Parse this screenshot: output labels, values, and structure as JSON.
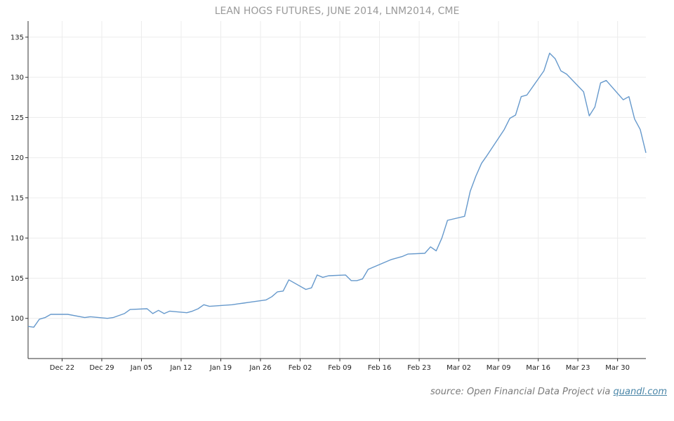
{
  "chart_data": {
    "type": "line",
    "title": "LEAN HOGS FUTURES, JUNE 2014, LNM2014, CME",
    "xlabel": "",
    "ylabel": "",
    "ylim": [
      95,
      137
    ],
    "xlim": [
      "2013-12-16",
      "2014-04-04"
    ],
    "grid": true,
    "line_color": "#6699cc",
    "yticks": [
      100,
      105,
      110,
      115,
      120,
      125,
      130,
      135
    ],
    "xticks": [
      {
        "date": "2013-12-22",
        "label": "Dec 22"
      },
      {
        "date": "2013-12-29",
        "label": "Dec 29"
      },
      {
        "date": "2014-01-05",
        "label": "Jan 05"
      },
      {
        "date": "2014-01-12",
        "label": "Jan 12"
      },
      {
        "date": "2014-01-19",
        "label": "Jan 19"
      },
      {
        "date": "2014-01-26",
        "label": "Jan 26"
      },
      {
        "date": "2014-02-02",
        "label": "Feb 02"
      },
      {
        "date": "2014-02-09",
        "label": "Feb 09"
      },
      {
        "date": "2014-02-16",
        "label": "Feb 16"
      },
      {
        "date": "2014-02-23",
        "label": "Feb 23"
      },
      {
        "date": "2014-03-02",
        "label": "Mar 02"
      },
      {
        "date": "2014-03-09",
        "label": "Mar 09"
      },
      {
        "date": "2014-03-16",
        "label": "Mar 16"
      },
      {
        "date": "2014-03-23",
        "label": "Mar 23"
      },
      {
        "date": "2014-03-30",
        "label": "Mar 30"
      }
    ],
    "x": [
      "2013-12-16",
      "2013-12-17",
      "2013-12-18",
      "2013-12-19",
      "2013-12-20",
      "2013-12-23",
      "2013-12-26",
      "2013-12-27",
      "2013-12-30",
      "2013-12-31",
      "2014-01-02",
      "2014-01-03",
      "2014-01-06",
      "2014-01-07",
      "2014-01-08",
      "2014-01-09",
      "2014-01-10",
      "2014-01-13",
      "2014-01-14",
      "2014-01-15",
      "2014-01-16",
      "2014-01-17",
      "2014-01-21",
      "2014-01-22",
      "2014-01-23",
      "2014-01-24",
      "2014-01-27",
      "2014-01-28",
      "2014-01-29",
      "2014-01-30",
      "2014-01-31",
      "2014-02-03",
      "2014-02-04",
      "2014-02-05",
      "2014-02-06",
      "2014-02-07",
      "2014-02-10",
      "2014-02-11",
      "2014-02-12",
      "2014-02-13",
      "2014-02-14",
      "2014-02-18",
      "2014-02-19",
      "2014-02-20",
      "2014-02-21",
      "2014-02-24",
      "2014-02-25",
      "2014-02-26",
      "2014-02-27",
      "2014-02-28",
      "2014-03-03",
      "2014-03-04",
      "2014-03-05",
      "2014-03-06",
      "2014-03-07",
      "2014-03-10",
      "2014-03-11",
      "2014-03-12",
      "2014-03-13",
      "2014-03-14",
      "2014-03-17",
      "2014-03-18",
      "2014-03-19",
      "2014-03-20",
      "2014-03-21",
      "2014-03-24",
      "2014-03-25",
      "2014-03-26",
      "2014-03-27",
      "2014-03-28",
      "2014-03-31",
      "2014-04-01",
      "2014-04-02",
      "2014-04-03",
      "2014-04-04"
    ],
    "series": [
      {
        "values": [
          99.0,
          98.9,
          99.9,
          100.1,
          100.5,
          100.5,
          100.1,
          100.2,
          100.0,
          100.1,
          100.6,
          101.1,
          101.2,
          100.6,
          101.0,
          100.6,
          100.9,
          100.7,
          100.9,
          101.2,
          101.7,
          101.5,
          101.7,
          101.8,
          101.9,
          102.0,
          102.3,
          102.7,
          103.3,
          103.4,
          104.8,
          103.6,
          103.8,
          105.4,
          105.1,
          105.3,
          105.4,
          104.7,
          104.7,
          104.9,
          106.1,
          107.3,
          107.5,
          107.7,
          108.0,
          108.1,
          108.9,
          108.4,
          110.0,
          112.2,
          112.7,
          115.8,
          117.7,
          119.3,
          120.3,
          123.5,
          124.9,
          125.3,
          127.6,
          127.8,
          130.8,
          133.0,
          132.3,
          130.8,
          130.4,
          128.2,
          125.2,
          126.3,
          129.3,
          129.6,
          127.2,
          127.6,
          124.8,
          123.5,
          120.6
        ]
      }
    ],
    "source_text": "source: Open Financial Data Project via ",
    "source_link": "quandl.com"
  }
}
